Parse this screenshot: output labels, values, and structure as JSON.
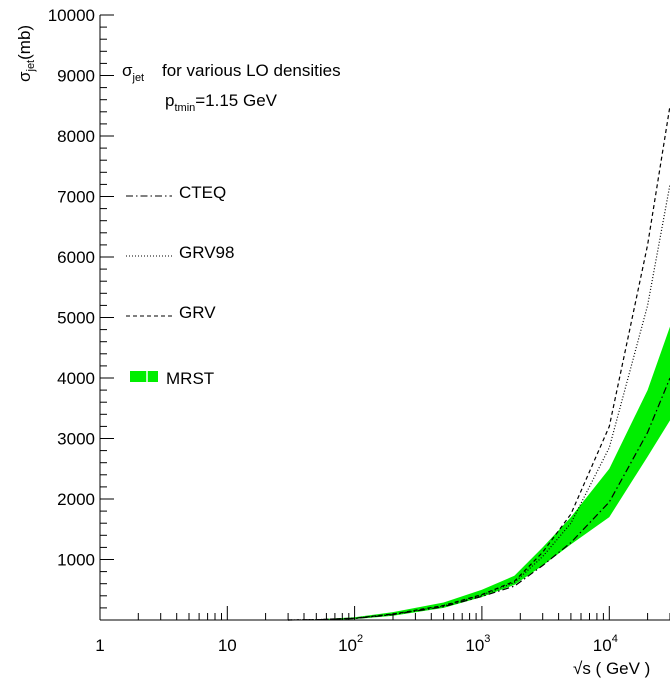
{
  "chart_data": {
    "type": "line",
    "title": "",
    "annotation": {
      "sigma": "σ",
      "sigma_sub": "jet",
      "text": "for various LO densities",
      "p_main": "p",
      "p_sub": "tmin",
      "p_value": "=1.15 GeV"
    },
    "ylabel": {
      "sigma": "σ",
      "sub": "jet",
      "unit": "(mb)"
    },
    "xlabel": "√s ( GeV )",
    "x_scale": "log",
    "xlim": [
      1,
      30000
    ],
    "ylim": [
      0,
      10000
    ],
    "grid": false,
    "legend_position": "left",
    "x_ticks": [
      {
        "base": "1",
        "exp": ""
      },
      {
        "base": "10",
        "exp": ""
      },
      {
        "base": "10",
        "exp": "2"
      },
      {
        "base": "10",
        "exp": "3"
      },
      {
        "base": "10",
        "exp": "4"
      }
    ],
    "y_ticks": [
      "1000",
      "2000",
      "3000",
      "4000",
      "5000",
      "6000",
      "7000",
      "8000",
      "9000",
      "10000"
    ],
    "series": [
      {
        "name": "CTEQ",
        "style": "dashdot",
        "color": "#000000",
        "x": [
          30,
          50,
          100,
          200,
          500,
          1000,
          1800,
          3000,
          5000,
          10000,
          20000,
          30000
        ],
        "y": [
          0,
          5,
          25,
          90,
          220,
          390,
          560,
          900,
          1280,
          1950,
          3100,
          4000
        ]
      },
      {
        "name": "GRV98",
        "style": "dotted",
        "color": "#000000",
        "x": [
          30,
          50,
          100,
          200,
          500,
          1000,
          1800,
          3000,
          5000,
          10000,
          20000,
          30000
        ],
        "y": [
          0,
          5,
          28,
          95,
          230,
          410,
          620,
          1050,
          1600,
          2850,
          5200,
          7200
        ]
      },
      {
        "name": "GRV",
        "style": "dashed",
        "color": "#000000",
        "x": [
          30,
          50,
          100,
          200,
          500,
          1000,
          1800,
          3000,
          5000,
          10000,
          20000,
          30000
        ],
        "y": [
          0,
          5,
          30,
          100,
          240,
          420,
          640,
          1120,
          1750,
          3200,
          6200,
          8500
        ]
      },
      {
        "name": "MRST",
        "style": "band",
        "color": "#00ee00",
        "x": [
          30,
          50,
          100,
          200,
          500,
          1000,
          1800,
          3000,
          5000,
          10000,
          20000,
          30000
        ],
        "y_low": [
          0,
          0,
          15,
          70,
          200,
          380,
          580,
          900,
          1250,
          1700,
          2700,
          3300
        ],
        "y_high": [
          0,
          10,
          45,
          130,
          290,
          500,
          730,
          1200,
          1700,
          2500,
          3800,
          4850
        ]
      }
    ]
  }
}
